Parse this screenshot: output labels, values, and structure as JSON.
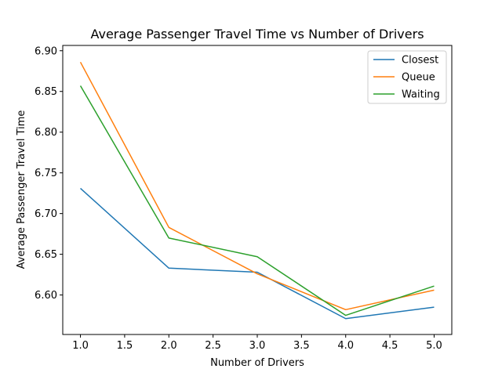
{
  "chart_data": {
    "type": "line",
    "title": "Average Passenger Travel Time vs Number of Drivers",
    "xlabel": "Number of Drivers",
    "ylabel": "Average Passenger Travel Time",
    "x": [
      1.0,
      2.0,
      3.0,
      4.0,
      5.0
    ],
    "xlim": [
      0.8,
      5.2
    ],
    "ylim": [
      6.5515,
      6.9065
    ],
    "xticks": [
      1.0,
      1.5,
      2.0,
      2.5,
      3.0,
      3.5,
      4.0,
      4.5,
      5.0
    ],
    "xtick_labels": [
      "1.0",
      "1.5",
      "2.0",
      "2.5",
      "3.0",
      "3.5",
      "4.0",
      "4.5",
      "5.0"
    ],
    "yticks": [
      6.6,
      6.65,
      6.7,
      6.75,
      6.8,
      6.85,
      6.9
    ],
    "ytick_labels": [
      "6.60",
      "6.65",
      "6.70",
      "6.75",
      "6.80",
      "6.85",
      "6.90"
    ],
    "grid": false,
    "legend_position": "top-right",
    "series": [
      {
        "name": "Closest",
        "color": "#1f77b4",
        "values": [
          6.731,
          6.633,
          6.628,
          6.571,
          6.585
        ]
      },
      {
        "name": "Queue",
        "color": "#ff7f0e",
        "values": [
          6.886,
          6.683,
          6.626,
          6.582,
          6.606
        ]
      },
      {
        "name": "Waiting",
        "color": "#2ca02c",
        "values": [
          6.857,
          6.67,
          6.647,
          6.575,
          6.611
        ]
      }
    ]
  }
}
